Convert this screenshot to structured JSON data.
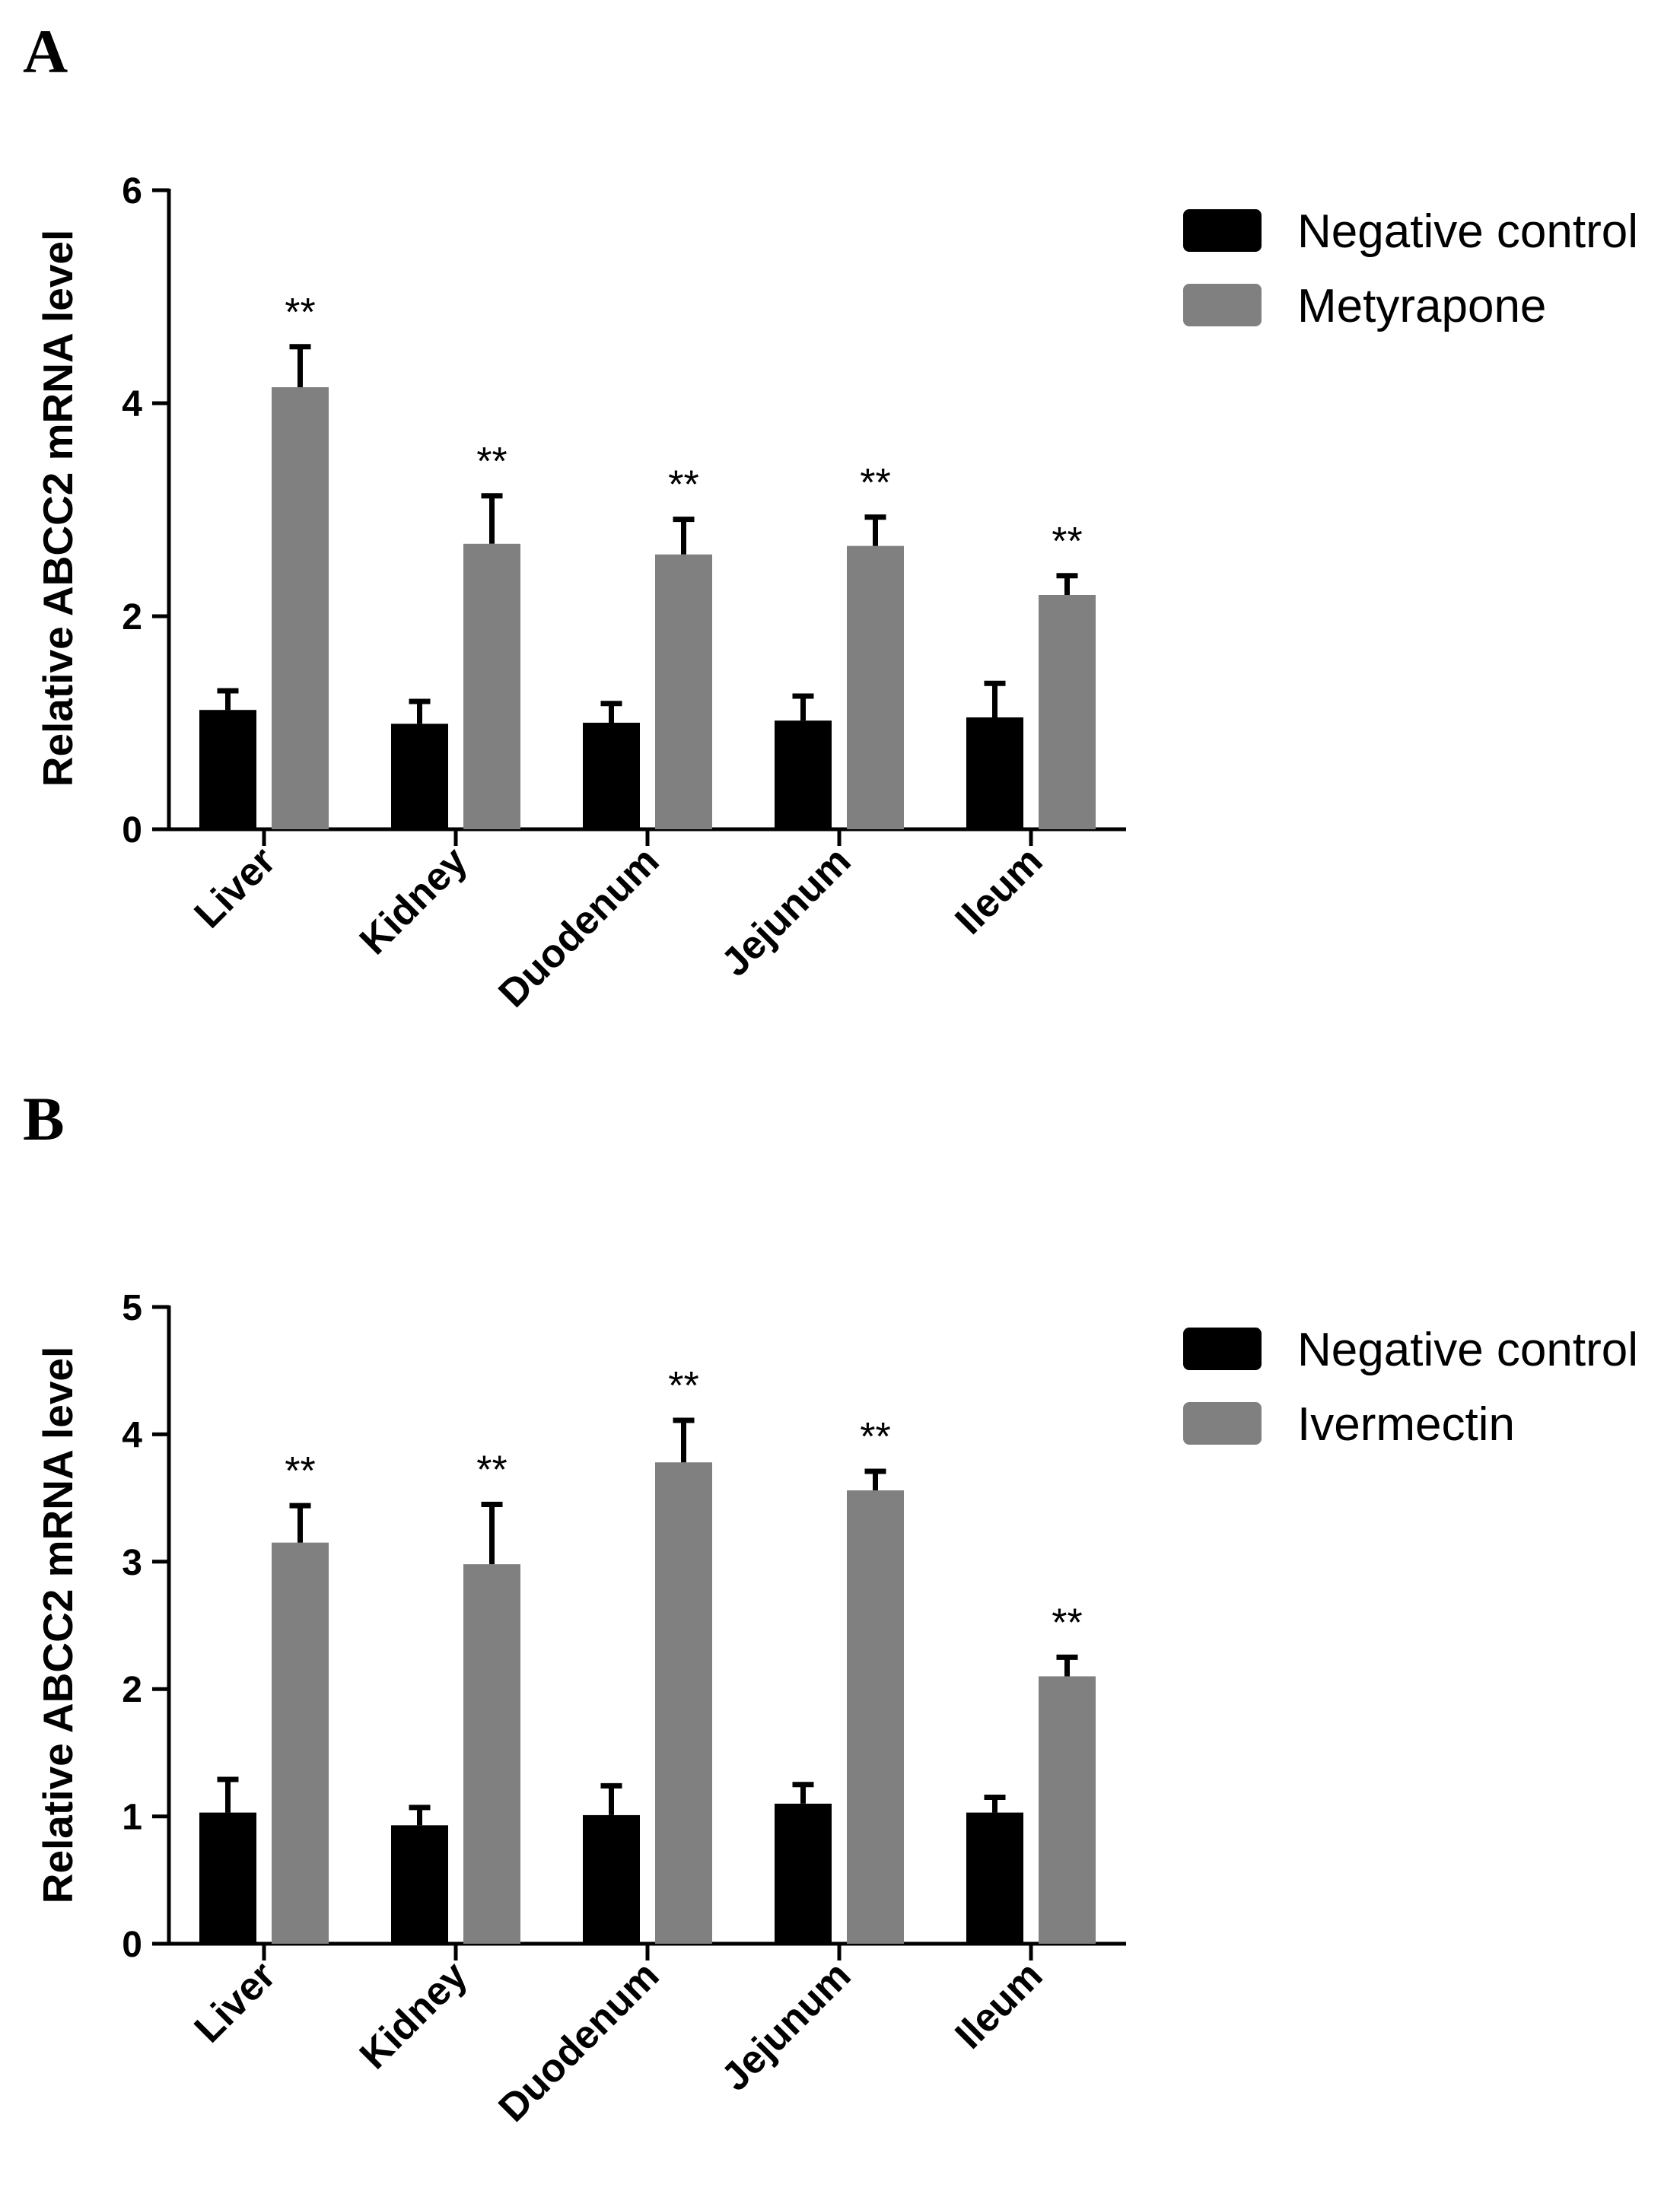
{
  "colors": {
    "control": "#000000",
    "treatment": "#808080",
    "axis": "#000000"
  },
  "chart_data": [
    {
      "panel": "A",
      "type": "bar",
      "ylabel": "Relative ABCC2 mRNA level",
      "xlabel": "",
      "ylim": [
        0,
        6
      ],
      "yticks": [
        "0",
        "2",
        "4",
        "6"
      ],
      "categories": [
        "Liver",
        "Kidney",
        "Duodenum",
        "Jejunum",
        "Ileum"
      ],
      "series": [
        {
          "name": "Negative control",
          "values": [
            1.12,
            0.99,
            1.0,
            1.02,
            1.05
          ],
          "errors": [
            0.18,
            0.21,
            0.18,
            0.23,
            0.32
          ]
        },
        {
          "name": "Metyrapone",
          "values": [
            4.15,
            2.68,
            2.58,
            2.66,
            2.2
          ],
          "errors": [
            0.38,
            0.45,
            0.33,
            0.27,
            0.18
          ],
          "significance": [
            "**",
            "**",
            "**",
            "**",
            "**"
          ]
        }
      ],
      "legend_position": "top-right"
    },
    {
      "panel": "B",
      "type": "bar",
      "ylabel": "Relative ABCC2 mRNA level",
      "xlabel": "",
      "ylim": [
        0,
        5
      ],
      "yticks": [
        "0",
        "1",
        "2",
        "3",
        "4",
        "5"
      ],
      "categories": [
        "Liver",
        "Kidney",
        "Duodenum",
        "Jejunum",
        "Ileum"
      ],
      "series": [
        {
          "name": "Negative control",
          "values": [
            1.03,
            0.93,
            1.01,
            1.1,
            1.03
          ],
          "errors": [
            0.26,
            0.14,
            0.23,
            0.15,
            0.12
          ]
        },
        {
          "name": "Ivermectin",
          "values": [
            3.15,
            2.98,
            3.78,
            3.56,
            2.1
          ],
          "errors": [
            0.29,
            0.47,
            0.33,
            0.15,
            0.15
          ],
          "significance": [
            "**",
            "**",
            "**",
            "**",
            "**"
          ]
        }
      ],
      "legend_position": "top-right"
    }
  ]
}
